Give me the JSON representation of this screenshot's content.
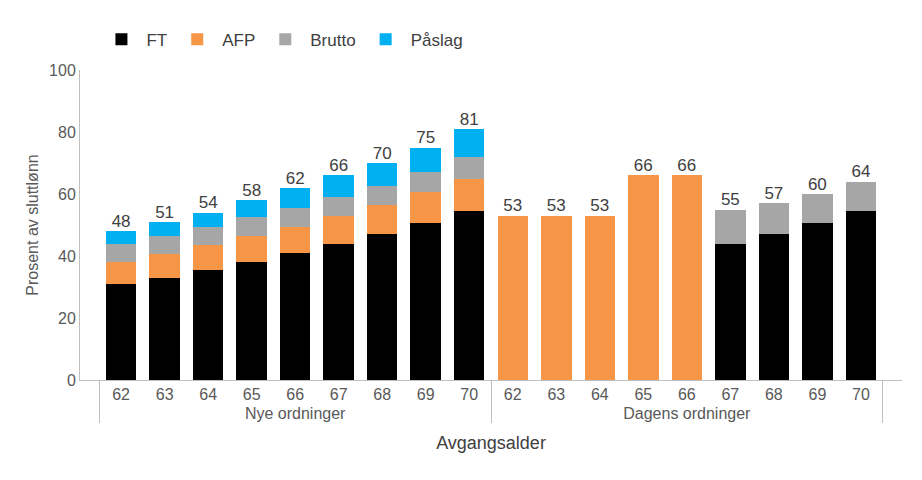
{
  "chart_data": {
    "type": "bar",
    "stacked": true,
    "grid": false,
    "legend": "top",
    "x_label": "Avgangsalder",
    "y_label": "Prosent av sluttlønn",
    "groups": [
      "Nye ordninger",
      "Nye ordninger",
      "Nye ordninger",
      "Nye ordninger",
      "Nye ordninger",
      "Nye ordninger",
      "Nye ordninger",
      "Nye ordninger",
      "Nye ordninger",
      "Dagens ordninger",
      "Dagens ordninger",
      "Dagens ordninger",
      "Dagens ordninger",
      "Dagens ordninger",
      "Dagens ordninger",
      "Dagens ordninger",
      "Dagens ordninger",
      "Dagens ordninger"
    ],
    "categories": [
      "62",
      "63",
      "64",
      "65",
      "66",
      "67",
      "68",
      "69",
      "70",
      "62",
      "63",
      "64",
      "65",
      "66",
      "67",
      "68",
      "69",
      "70"
    ],
    "series": [
      {
        "name": "FT",
        "color": "#000000",
        "values": [
          31,
          33,
          35.5,
          38,
          41,
          44,
          47,
          50.5,
          54.5,
          null,
          null,
          null,
          null,
          null,
          44,
          47,
          50.5,
          54.5
        ]
      },
      {
        "name": "AFP",
        "color": "#f79646",
        "values": [
          7,
          7.5,
          8,
          8.5,
          8.5,
          9,
          9.5,
          10,
          10.5,
          53,
          53,
          53,
          66,
          66,
          null,
          null,
          null,
          null
        ]
      },
      {
        "name": "Brutto",
        "color": "#a6a6a6",
        "values": [
          6,
          6,
          6,
          6,
          6,
          6,
          6,
          6.5,
          7,
          null,
          null,
          null,
          null,
          null,
          11,
          10,
          9.5,
          9.5
        ]
      },
      {
        "name": "Påslag",
        "color": "#00b0f0",
        "values": [
          4,
          4.5,
          4.5,
          5.5,
          6.5,
          7,
          7.5,
          8,
          9,
          null,
          null,
          null,
          null,
          null,
          null,
          null,
          null,
          null
        ]
      }
    ],
    "totals": [
      48,
      51,
      54,
      58,
      62,
      66,
      70,
      75,
      81,
      53,
      53,
      53,
      66,
      66,
      55,
      57,
      60,
      64
    ],
    "ylim": [
      0,
      100
    ],
    "yticks": [
      0,
      20,
      40,
      60,
      80,
      100
    ]
  }
}
